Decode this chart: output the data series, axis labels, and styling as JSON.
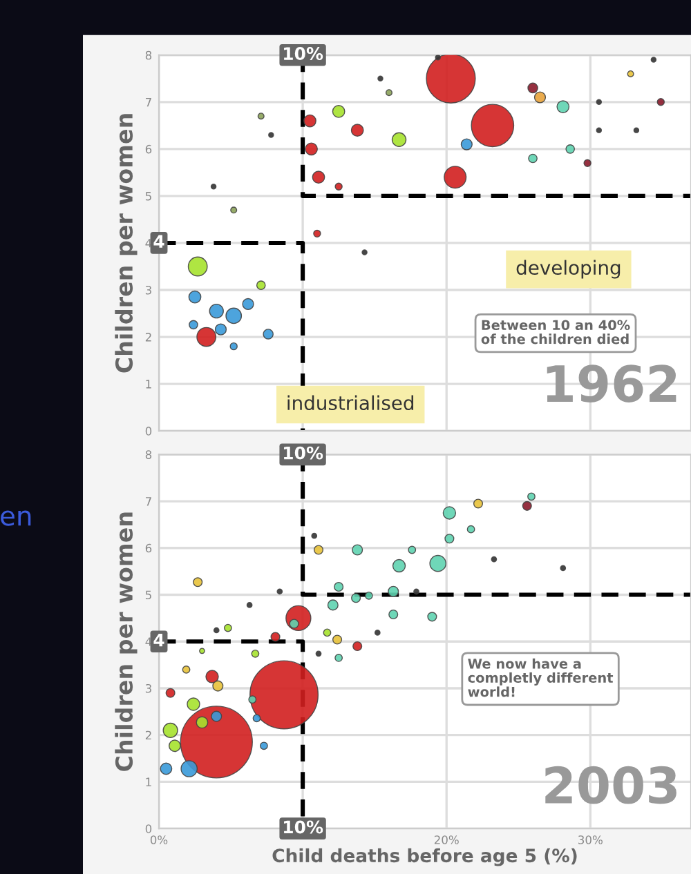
{
  "chart_data": [
    {
      "type": "bubble",
      "ylabel": "Children per women",
      "xlim": [
        0,
        37
      ],
      "ylim": [
        0,
        8
      ],
      "xticks": [
        {
          "value": 0,
          "label": null
        },
        {
          "value": 10,
          "label": null
        },
        {
          "value": 20,
          "label": null
        },
        {
          "value": 30,
          "label": null
        }
      ],
      "yticks": [
        0,
        1,
        2,
        3,
        4,
        5,
        6,
        7,
        8
      ],
      "tick_labels": "y",
      "grid": true,
      "annotations": [
        "10%",
        "4",
        "developing",
        "industrialised",
        "Between 10 an 40%\nof the children died",
        "1962"
      ],
      "series": [
        {
          "marker": "circle",
          "x": [
            20.3,
            23.2,
            20.6,
            10.5,
            10.6,
            11.1,
            13.8,
            12.5,
            11.0,
            3.3,
            2.7,
            12.5,
            16.7,
            7.1,
            2.5,
            4.0,
            5.2,
            6.2,
            7.6,
            2.4,
            5.2,
            4.3,
            21.4,
            28.1,
            26.0,
            28.6,
            26.5,
            26.0,
            34.9,
            29.8,
            3.8,
            14.3,
            7.8,
            15.4,
            19.4,
            30.6,
            33.2,
            34.4,
            30.6,
            5.2,
            7.1,
            16.0,
            32.8
          ],
          "values": [
            7.5,
            6.5,
            5.4,
            6.6,
            6.0,
            5.4,
            6.4,
            5.2,
            4.2,
            2.0,
            3.5,
            6.8,
            6.2,
            3.1,
            2.85,
            2.55,
            2.45,
            2.7,
            2.06,
            2.26,
            1.8,
            2.16,
            6.1,
            6.9,
            5.8,
            6.0,
            7.1,
            7.3,
            7.0,
            5.7,
            5.2,
            3.8,
            6.3,
            7.5,
            7.95,
            6.4,
            6.4,
            7.9,
            7.0,
            4.7,
            6.7,
            7.2,
            7.6
          ],
          "sizes": [
            1,
            0.75,
            0.2,
            0.06,
            0.06,
            0.06,
            0.06,
            0.02,
            0.02,
            0.15,
            0.15,
            0.06,
            0.08,
            0.03,
            0.06,
            0.08,
            0.1,
            0.05,
            0.04,
            0.03,
            0.02,
            0.05,
            0.05,
            0.06,
            0.03,
            0.03,
            0.05,
            0.04,
            0.02,
            0.02,
            0.01,
            0.01,
            0.01,
            0.01,
            0.01,
            0.01,
            0.01,
            0.01,
            0.01,
            0.015,
            0.015,
            0.015,
            0.015
          ],
          "colors": [
            "#d21f1f",
            "#d21f1f",
            "#d21f1f",
            "#d21f1f",
            "#d21f1f",
            "#d21f1f",
            "#d21f1f",
            "#d21f1f",
            "#d21f1f",
            "#d21f1f",
            "#a6e22e",
            "#a6e22e",
            "#a6e22e",
            "#a6e22e",
            "#3a9ad9",
            "#3a9ad9",
            "#3a9ad9",
            "#3a9ad9",
            "#3a9ad9",
            "#3a9ad9",
            "#3a9ad9",
            "#3a9ad9",
            "#3a9ad9",
            "#5fd3b0",
            "#5fd3b0",
            "#5fd3b0",
            "#e8a23a",
            "#8b1a2b",
            "#8b1a2b",
            "#8b1a2b",
            "#333333",
            "#333333",
            "#333333",
            "#333333",
            "#333333",
            "#333333",
            "#333333",
            "#333333",
            "#333333",
            "#8ca35a",
            "#8ca35a",
            "#8ca35a",
            "#e8c23a"
          ]
        },
        {
          "type": "line",
          "x": [
            10,
            10,
            37
          ],
          "values": [
            8,
            5,
            5
          ],
          "color": "#000000",
          "line_style": "dashed"
        },
        {
          "type": "line",
          "x": [
            0,
            10,
            10
          ],
          "values": [
            4,
            4,
            0
          ],
          "color": "#000000",
          "line_style": "dashed"
        }
      ]
    },
    {
      "type": "bubble",
      "ylabel": "Children per women",
      "xlabel": "Child deaths before age 5 (%)",
      "xlim": [
        0,
        37
      ],
      "ylim": [
        0,
        8
      ],
      "xticks": [
        {
          "value": 0,
          "label": "0%"
        },
        {
          "value": 10,
          "label": null
        },
        {
          "value": 20,
          "label": "20%"
        },
        {
          "value": 30,
          "label": "30%"
        }
      ],
      "yticks": [
        0,
        1,
        2,
        3,
        4,
        5,
        6,
        7,
        8
      ],
      "grid": true,
      "annotations": [
        "10%",
        "4",
        "10%",
        "We now have a\ncompletly different\nworld!",
        "2003",
        "en"
      ],
      "series": [
        {
          "marker": "circle",
          "x": [
            4.0,
            8.7,
            9.7,
            3.7,
            13.8,
            0.8,
            8.1,
            25.6,
            2.1,
            0.5,
            4.0,
            7.3,
            6.8,
            0.8,
            2.4,
            3.0,
            1.1,
            6.7,
            4.8,
            11.7,
            3.0,
            2.7,
            11.1,
            4.1,
            12.4,
            22.2,
            1.9,
            20.2,
            19.4,
            16.7,
            13.8,
            12.5,
            12.1,
            16.3,
            13.7,
            14.6,
            16.3,
            19.0,
            12.5,
            17.6,
            20.2,
            21.7,
            25.9,
            6.5,
            9.4,
            28.1,
            23.3,
            17.9,
            15.2,
            8.4,
            10.8,
            6.3,
            4.0,
            11.1
          ],
          "values": [
            1.85,
            2.86,
            4.5,
            3.25,
            3.9,
            2.9,
            4.1,
            6.9,
            1.28,
            1.28,
            2.4,
            1.77,
            2.36,
            2.1,
            2.66,
            2.27,
            1.77,
            3.74,
            4.29,
            4.19,
            3.8,
            5.27,
            5.96,
            3.05,
            4.04,
            6.95,
            3.4,
            6.75,
            5.67,
            5.62,
            5.96,
            5.17,
            4.78,
            5.07,
            4.93,
            4.98,
            4.58,
            4.53,
            3.65,
            5.96,
            6.2,
            6.4,
            7.1,
            2.76,
            4.38,
            5.57,
            5.76,
            5.07,
            4.19,
            5.07,
            6.26,
            4.78,
            4.24,
            3.74
          ],
          "sizes": [
            1,
            0.9,
            0.12,
            0.03,
            0.015,
            0.015,
            0.015,
            0.015,
            0.05,
            0.025,
            0.02,
            0.01,
            0.01,
            0.04,
            0.03,
            0.025,
            0.025,
            0.01,
            0.01,
            0.01,
            0.005,
            0.015,
            0.015,
            0.02,
            0.015,
            0.015,
            0.01,
            0.03,
            0.05,
            0.03,
            0.02,
            0.015,
            0.02,
            0.02,
            0.015,
            0.01,
            0.015,
            0.015,
            0.01,
            0.01,
            0.015,
            0.01,
            0.01,
            0.01,
            0.015,
            0.005,
            0.005,
            0.005,
            0.005,
            0.005,
            0.005,
            0.005,
            0.005,
            0.005
          ],
          "colors": [
            "#d21f1f",
            "#d21f1f",
            "#d21f1f",
            "#d21f1f",
            "#d21f1f",
            "#d21f1f",
            "#d21f1f",
            "#8b1a2b",
            "#3a9ad9",
            "#3a9ad9",
            "#3a9ad9",
            "#3a9ad9",
            "#3a9ad9",
            "#a6e22e",
            "#a6e22e",
            "#a6e22e",
            "#a6e22e",
            "#a6e22e",
            "#a6e22e",
            "#a6e22e",
            "#a6e22e",
            "#e8c23a",
            "#e8c23a",
            "#e8c23a",
            "#e8c23a",
            "#e8c23a",
            "#e8c23a",
            "#5fd3b0",
            "#5fd3b0",
            "#5fd3b0",
            "#5fd3b0",
            "#5fd3b0",
            "#5fd3b0",
            "#5fd3b0",
            "#5fd3b0",
            "#5fd3b0",
            "#5fd3b0",
            "#5fd3b0",
            "#5fd3b0",
            "#5fd3b0",
            "#5fd3b0",
            "#5fd3b0",
            "#5fd3b0",
            "#5fd3b0",
            "#5fd3b0",
            "#333333",
            "#333333",
            "#333333",
            "#333333",
            "#333333",
            "#333333",
            "#333333",
            "#333333",
            "#333333"
          ]
        },
        {
          "type": "line",
          "x": [
            10,
            10,
            37
          ],
          "values": [
            8,
            5,
            5
          ],
          "color": "#000000",
          "line_style": "dashed"
        },
        {
          "type": "line",
          "x": [
            0,
            10,
            10
          ],
          "values": [
            4,
            4,
            0
          ],
          "color": "#000000",
          "line_style": "dashed"
        }
      ]
    }
  ]
}
